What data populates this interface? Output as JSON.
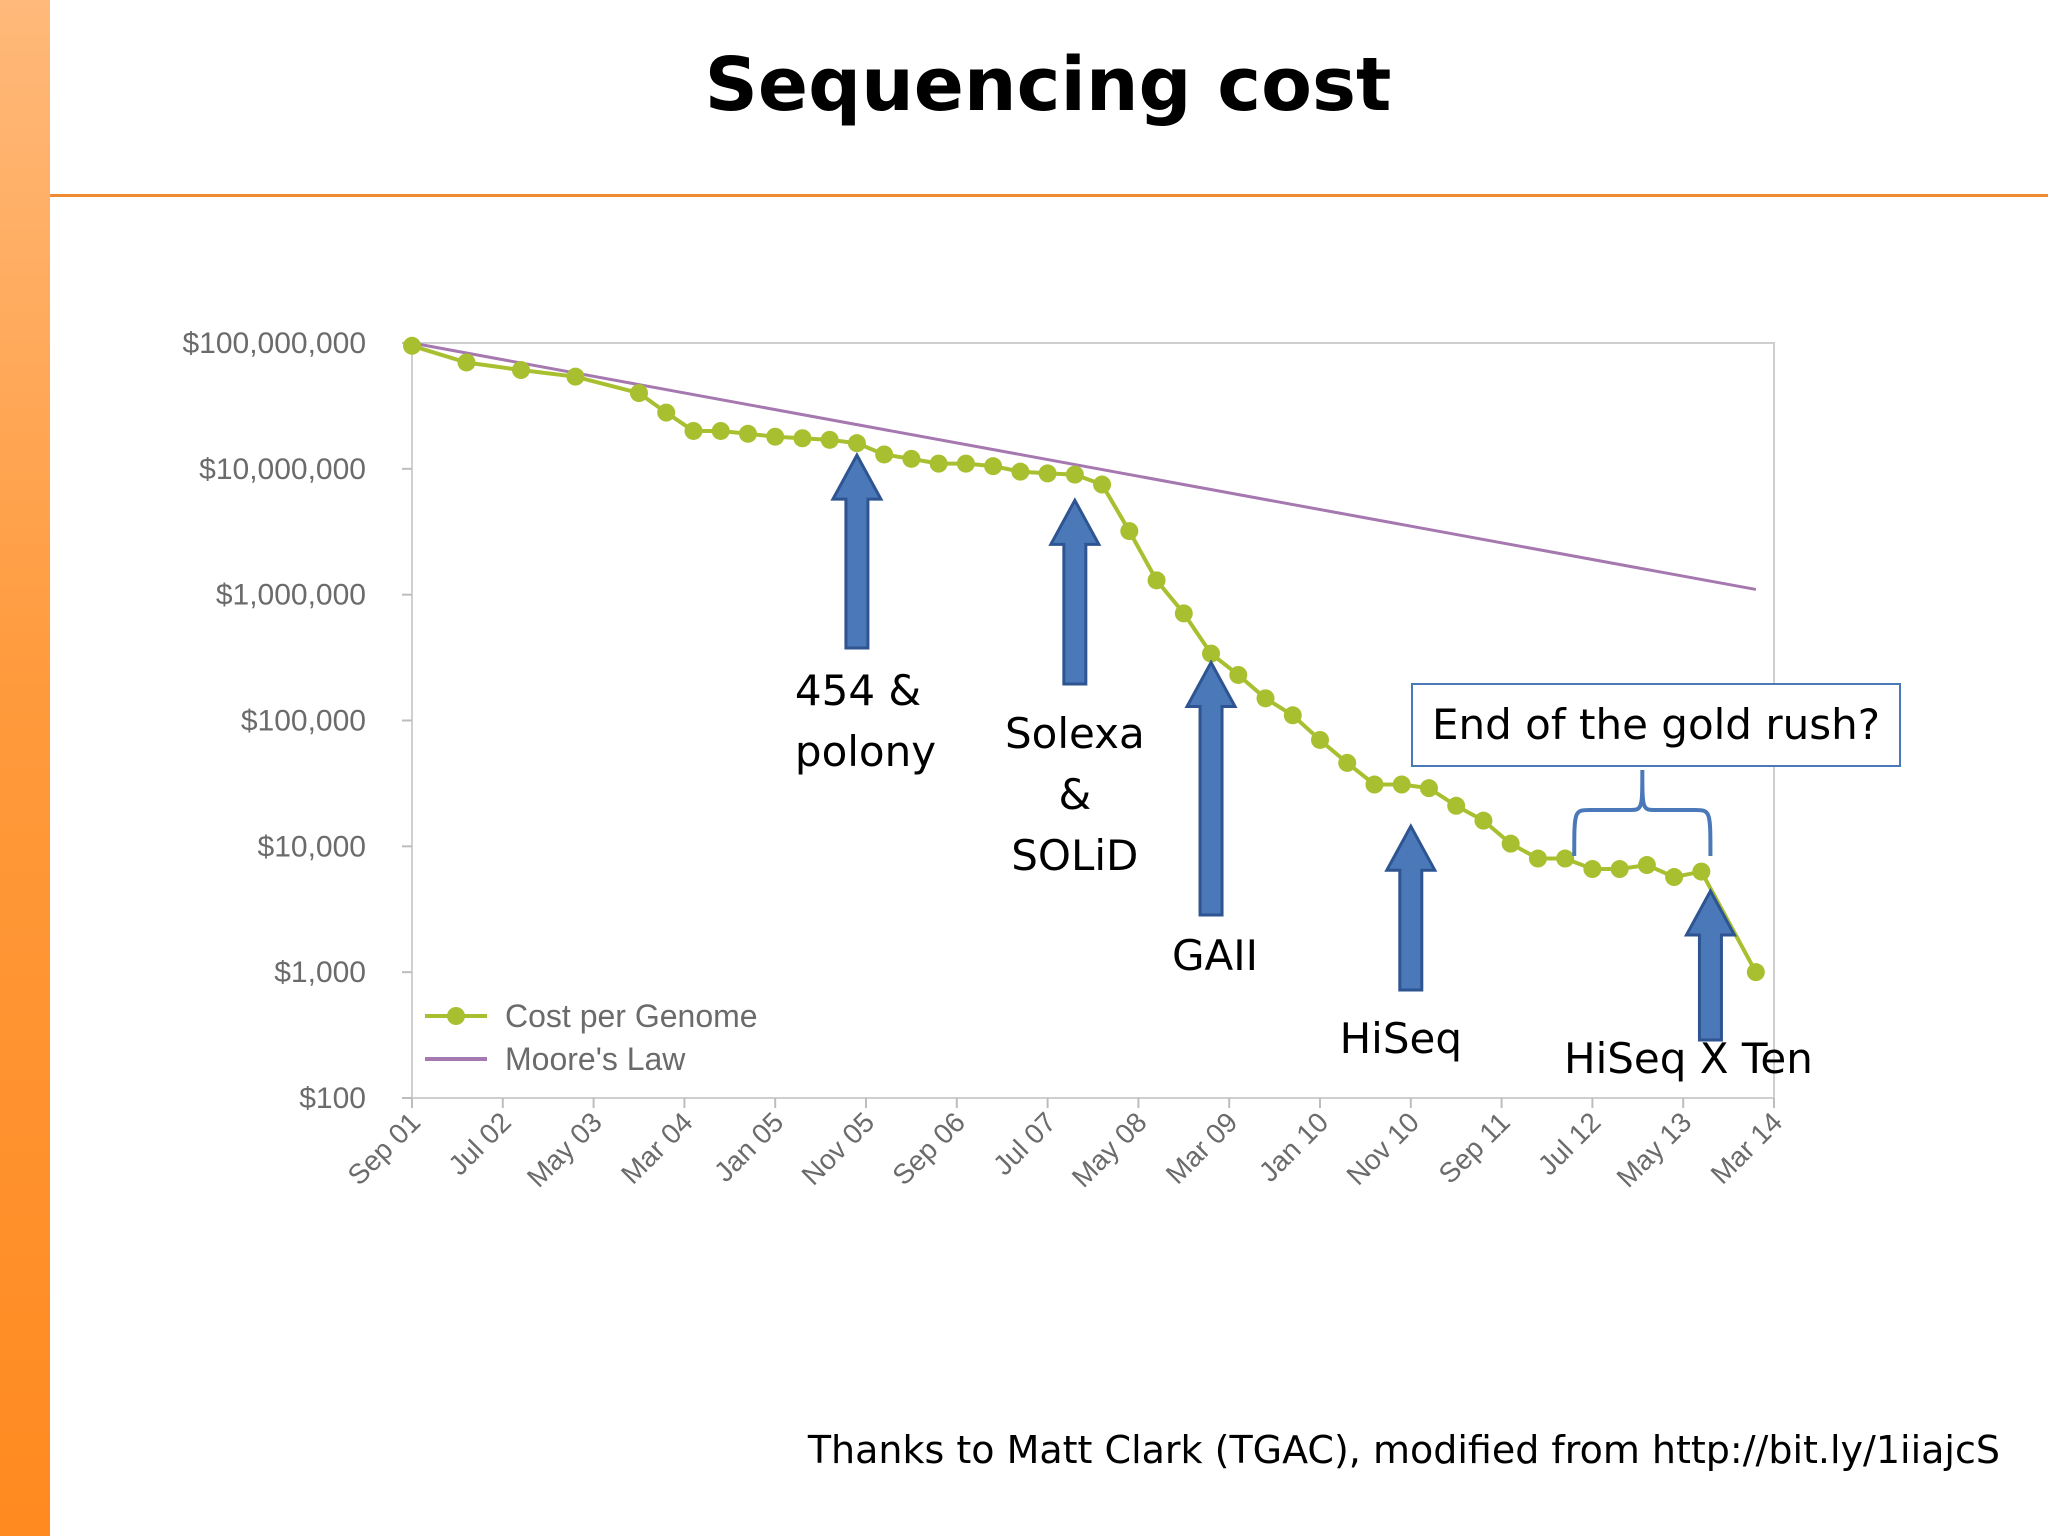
{
  "slide": {
    "title": "Sequencing cost",
    "credit": "Thanks to Matt Clark (TGAC), modified from http://bit.ly/1iiajcS"
  },
  "colors": {
    "accent_bar": "#ff9a3c",
    "title_rule": "#f08a30",
    "cost_series": "#a8c030",
    "moore_series": "#a678b0",
    "arrow_fill": "#4a78b8",
    "arrow_stroke": "#2e5591",
    "callout_border": "#4a78b8"
  },
  "chart_data": {
    "type": "line",
    "title": "",
    "xlabel": "",
    "ylabel": "",
    "y_scale": "log",
    "ylim": [
      100,
      100000000
    ],
    "grid": false,
    "legend_position": "bottom-left",
    "y_ticks": [
      {
        "value": 100000000,
        "label": "$100,000,000"
      },
      {
        "value": 10000000,
        "label": "$10,000,000"
      },
      {
        "value": 1000000,
        "label": "$1,000,000"
      },
      {
        "value": 100000,
        "label": "$100,000"
      },
      {
        "value": 10000,
        "label": "$10,000"
      },
      {
        "value": 1000,
        "label": "$1,000"
      },
      {
        "value": 100,
        "label": "$100"
      }
    ],
    "x_ticks": [
      {
        "date": "2001-09",
        "label": "Sep 01"
      },
      {
        "date": "2002-07",
        "label": "Jul 02"
      },
      {
        "date": "2003-05",
        "label": "May 03"
      },
      {
        "date": "2004-03",
        "label": "Mar 04"
      },
      {
        "date": "2005-01",
        "label": "Jan 05"
      },
      {
        "date": "2005-11",
        "label": "Nov 05"
      },
      {
        "date": "2006-09",
        "label": "Sep 06"
      },
      {
        "date": "2007-07",
        "label": "Jul 07"
      },
      {
        "date": "2008-05",
        "label": "May 08"
      },
      {
        "date": "2009-03",
        "label": "Mar 09"
      },
      {
        "date": "2010-01",
        "label": "Jan 10"
      },
      {
        "date": "2010-11",
        "label": "Nov 10"
      },
      {
        "date": "2011-09",
        "label": "Sep 11"
      },
      {
        "date": "2012-07",
        "label": "Jul 12"
      },
      {
        "date": "2013-05",
        "label": "May 13"
      },
      {
        "date": "2014-03",
        "label": "Mar 14"
      }
    ],
    "series": [
      {
        "name": "Cost per Genome",
        "points": [
          {
            "x": "2001-09",
            "y": 95000000
          },
          {
            "x": "2002-03",
            "y": 70000000
          },
          {
            "x": "2002-09",
            "y": 61000000
          },
          {
            "x": "2003-03",
            "y": 54000000
          },
          {
            "x": "2003-10",
            "y": 40000000
          },
          {
            "x": "2004-01",
            "y": 28000000
          },
          {
            "x": "2004-04",
            "y": 20000000
          },
          {
            "x": "2004-07",
            "y": 20000000
          },
          {
            "x": "2004-10",
            "y": 19000000
          },
          {
            "x": "2005-01",
            "y": 18000000
          },
          {
            "x": "2005-04",
            "y": 17500000
          },
          {
            "x": "2005-07",
            "y": 17000000
          },
          {
            "x": "2005-10",
            "y": 16000000
          },
          {
            "x": "2006-01",
            "y": 13000000
          },
          {
            "x": "2006-04",
            "y": 12000000
          },
          {
            "x": "2006-07",
            "y": 11000000
          },
          {
            "x": "2006-10",
            "y": 11000000
          },
          {
            "x": "2007-01",
            "y": 10500000
          },
          {
            "x": "2007-04",
            "y": 9500000
          },
          {
            "x": "2007-07",
            "y": 9200000
          },
          {
            "x": "2007-10",
            "y": 9000000
          },
          {
            "x": "2008-01",
            "y": 7500000
          },
          {
            "x": "2008-04",
            "y": 3200000
          },
          {
            "x": "2008-07",
            "y": 1300000
          },
          {
            "x": "2008-10",
            "y": 710000
          },
          {
            "x": "2009-01",
            "y": 340000
          },
          {
            "x": "2009-04",
            "y": 230000
          },
          {
            "x": "2009-07",
            "y": 150000
          },
          {
            "x": "2009-10",
            "y": 110000
          },
          {
            "x": "2010-01",
            "y": 70000
          },
          {
            "x": "2010-04",
            "y": 46000
          },
          {
            "x": "2010-07",
            "y": 31000
          },
          {
            "x": "2010-10",
            "y": 31000
          },
          {
            "x": "2011-01",
            "y": 29000
          },
          {
            "x": "2011-04",
            "y": 21000
          },
          {
            "x": "2011-07",
            "y": 16000
          },
          {
            "x": "2011-10",
            "y": 10500
          },
          {
            "x": "2012-01",
            "y": 8000
          },
          {
            "x": "2012-04",
            "y": 8000
          },
          {
            "x": "2012-07",
            "y": 6600
          },
          {
            "x": "2012-10",
            "y": 6600
          },
          {
            "x": "2013-01",
            "y": 7100
          },
          {
            "x": "2013-04",
            "y": 5700
          },
          {
            "x": "2013-07",
            "y": 6300
          },
          {
            "x": "2014-01",
            "y": 1000
          }
        ]
      },
      {
        "name": "Moore's Law",
        "points": [
          {
            "x": "2001-09",
            "y": 100000000
          },
          {
            "x": "2014-01",
            "y": 1100000
          }
        ]
      }
    ],
    "annotations": [
      {
        "lines": [
          "454 &",
          "polony"
        ],
        "arrow_at": "2005-10",
        "arrow_top_y": 16000000,
        "text_align": "start"
      },
      {
        "lines": [
          "Solexa",
          "&",
          "SOLiD"
        ],
        "arrow_at": "2007-10",
        "arrow_top_y": 7000000,
        "text_align": "middle"
      },
      {
        "lines": [
          "GAII"
        ],
        "arrow_at": "2009-01",
        "arrow_top_y": 360000,
        "text_align": "middle"
      },
      {
        "lines": [
          "HiSeq"
        ],
        "arrow_at": "2010-11",
        "arrow_top_y": 18000,
        "text_align": "middle"
      },
      {
        "lines": [
          "HiSeq X Ten"
        ],
        "arrow_at": "2013-08",
        "arrow_top_y": 5500,
        "text_align": "middle"
      }
    ],
    "callout": {
      "text": "End of the gold rush?",
      "brace_from": "2012-05",
      "brace_to": "2013-08",
      "brace_at_y": 7500
    }
  }
}
